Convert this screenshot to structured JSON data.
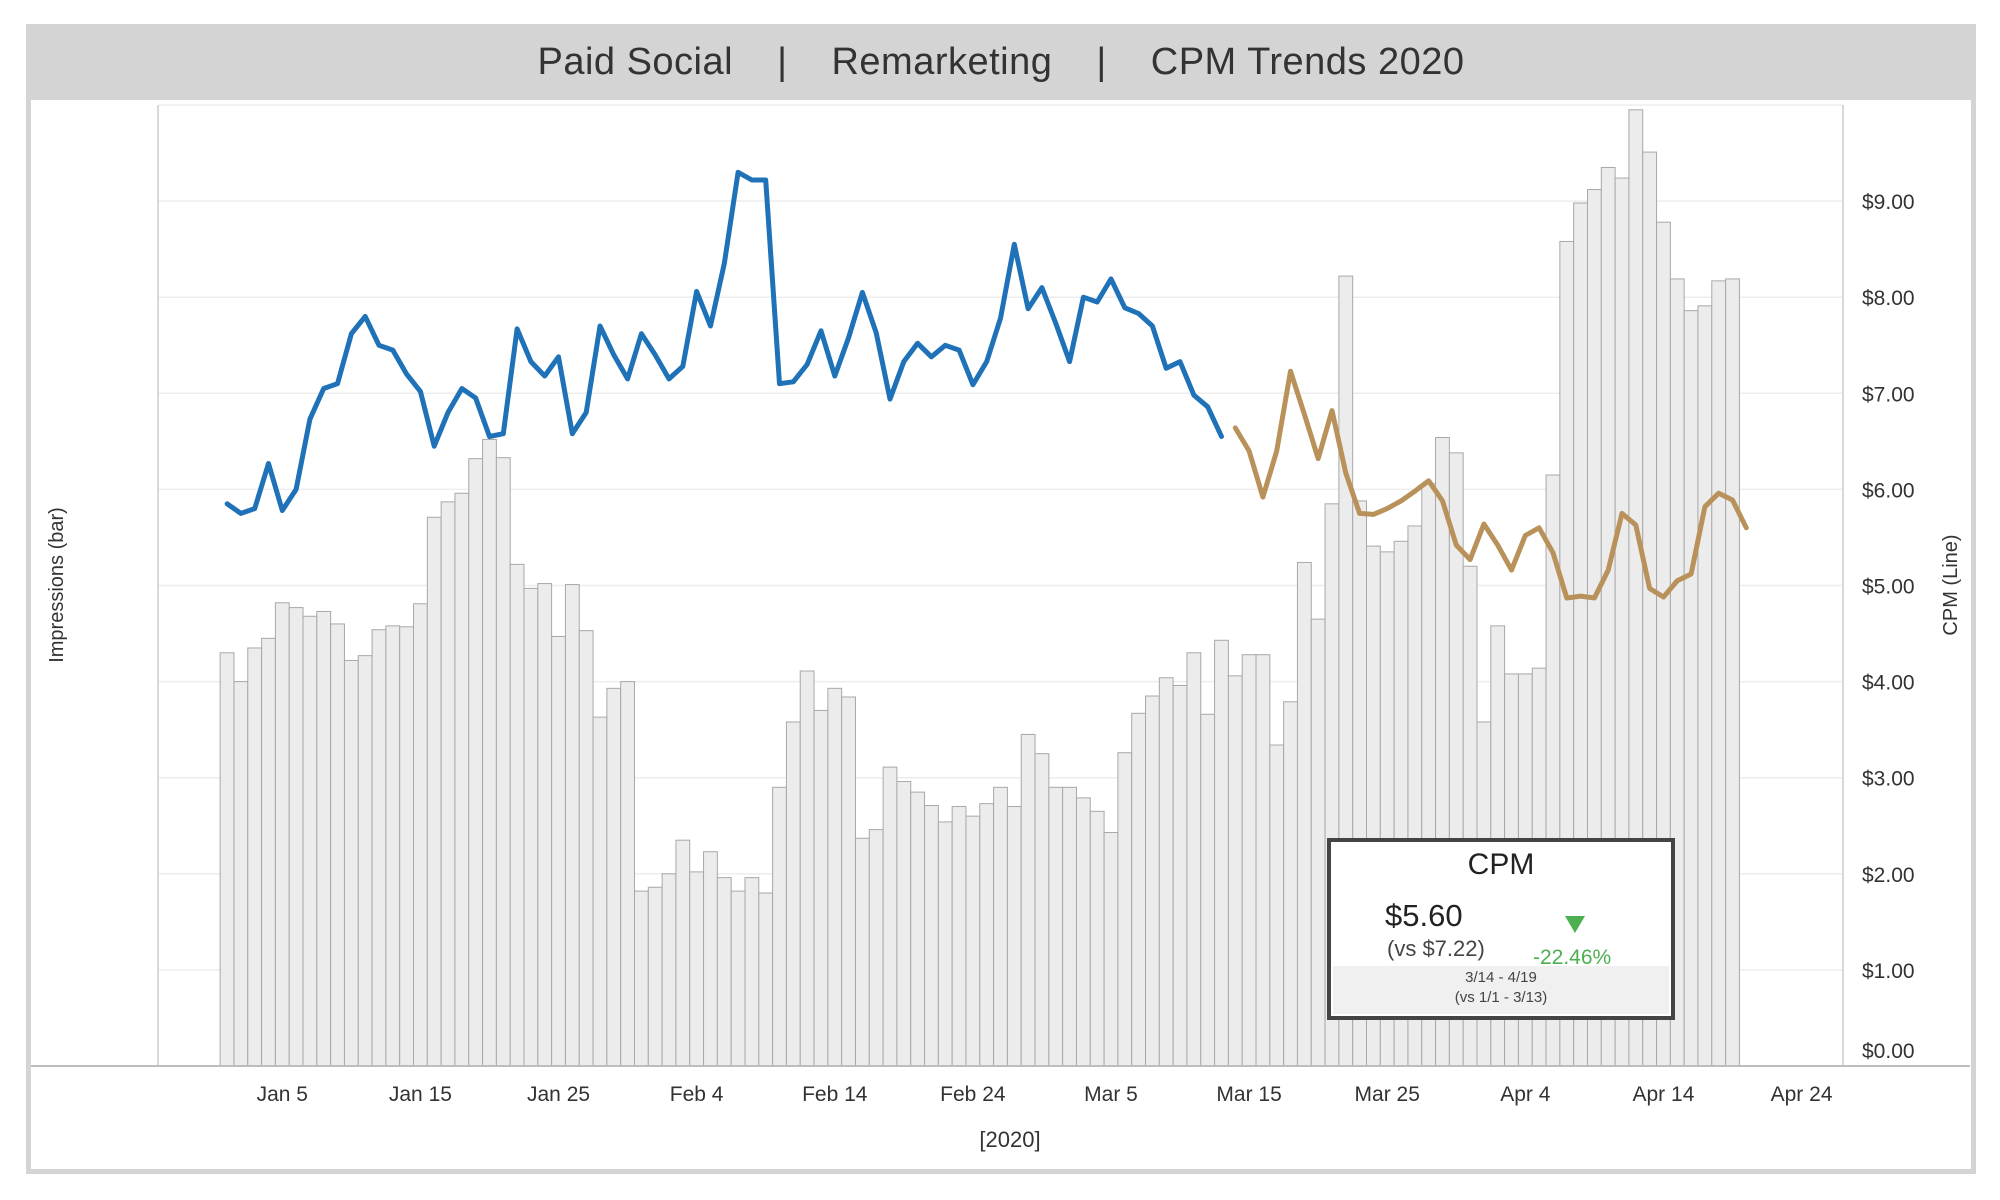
{
  "header": {
    "segments": [
      "Paid Social",
      "Remarketing",
      "CPM Trends 2020"
    ],
    "separator": "|"
  },
  "chart_data": {
    "type": "bar",
    "combo": "bar+line",
    "title": "Paid Social | Remarketing | CPM Trends 2020",
    "xlabel": "[2020]",
    "ylabel_left": "Impressions (bar)",
    "ylabel_right": "CPM (Line)",
    "x_tick_labels": [
      "Jan 5",
      "Jan 15",
      "Jan 25",
      "Feb 4",
      "Feb 14",
      "Feb 24",
      "Mar 5",
      "Mar 15",
      "Mar 25",
      "Apr 4",
      "Apr 14",
      "Apr 24"
    ],
    "x_range": [
      "2019-12-27",
      "2020-04-27"
    ],
    "right_axis": {
      "ylim": [
        0,
        10
      ],
      "ticks": [
        "$0.00",
        "$1.00",
        "$2.00",
        "$3.00",
        "$4.00",
        "$5.00",
        "$6.00",
        "$7.00",
        "$8.00",
        "$9.00"
      ]
    },
    "left_axis": {
      "ylim": [
        0,
        10
      ],
      "tick_labels_shown": false
    },
    "grid": true,
    "bars": {
      "name": "Impressions",
      "start_date": "2020-01-01",
      "color": "#ececec",
      "values": [
        4.3,
        4.0,
        4.35,
        4.45,
        4.82,
        4.77,
        4.68,
        4.73,
        4.6,
        4.22,
        4.27,
        4.54,
        4.58,
        4.57,
        4.81,
        5.71,
        5.87,
        5.96,
        6.32,
        6.52,
        6.33,
        5.22,
        4.97,
        5.02,
        4.47,
        5.01,
        4.53,
        3.63,
        3.93,
        4.0,
        1.82,
        1.86,
        2.0,
        2.35,
        2.02,
        2.23,
        1.96,
        1.82,
        1.96,
        1.8,
        2.9,
        3.58,
        4.11,
        3.7,
        3.93,
        3.84,
        2.37,
        2.46,
        3.11,
        2.96,
        2.85,
        2.71,
        2.54,
        2.7,
        2.6,
        2.73,
        2.9,
        2.7,
        3.45,
        3.25,
        2.9,
        2.9,
        2.79,
        2.65,
        2.43,
        3.26,
        3.67,
        3.85,
        4.04,
        3.96,
        4.3,
        3.66,
        4.43,
        4.06,
        4.28,
        4.28,
        3.34,
        3.79,
        5.24,
        4.65,
        5.85,
        8.22,
        5.88,
        5.41,
        5.35,
        5.46,
        5.62,
        6.06,
        6.54,
        6.38,
        5.2,
        3.58,
        4.58,
        4.08,
        4.08,
        4.14,
        6.15,
        8.58,
        8.98,
        9.12,
        9.35,
        9.24,
        9.95,
        9.51,
        8.78,
        8.19,
        7.86,
        7.91,
        8.17,
        8.19
      ]
    },
    "series": [
      {
        "name": "CPM",
        "period": "3/14 - 4/19",
        "color_pre": "#1f72b8",
        "color_post": "#b8925a",
        "split_date": "2020-03-14",
        "start_date": "2020-01-01",
        "values": [
          5.85,
          5.75,
          5.8,
          6.27,
          5.78,
          6.0,
          6.73,
          7.05,
          7.1,
          7.62,
          7.8,
          7.5,
          7.45,
          7.2,
          7.02,
          6.45,
          6.8,
          7.05,
          6.95,
          6.55,
          6.58,
          7.67,
          7.33,
          7.18,
          7.38,
          6.58,
          6.8,
          7.7,
          7.4,
          7.15,
          7.62,
          7.4,
          7.15,
          7.28,
          8.06,
          7.7,
          8.35,
          9.3,
          9.22,
          9.22,
          7.1,
          7.12,
          7.3,
          7.65,
          7.18,
          7.58,
          8.05,
          7.63,
          6.94,
          7.33,
          7.52,
          7.38,
          7.5,
          7.45,
          7.09,
          7.33,
          7.78,
          8.55,
          7.88,
          8.1,
          7.73,
          7.33,
          8.0,
          7.95,
          8.19,
          7.89,
          7.83,
          7.7,
          7.26,
          7.33,
          6.98,
          6.86,
          6.55,
          6.64,
          6.4,
          5.92,
          6.4,
          7.23,
          6.78,
          6.32,
          6.82,
          6.17,
          5.75,
          5.74,
          5.8,
          5.88,
          5.98,
          6.09,
          5.88,
          5.42,
          5.27,
          5.64,
          5.42,
          5.16,
          5.52,
          5.6,
          5.34,
          4.87,
          4.89,
          4.87,
          5.16,
          5.75,
          5.63,
          4.97,
          4.88,
          5.05,
          5.12,
          5.82,
          5.96,
          5.89,
          5.6
        ]
      }
    ]
  },
  "card": {
    "title": "CPM",
    "value": "$5.60",
    "compare": "(vs $7.22)",
    "change": "-22.46%",
    "period": "3/14 - 4/19",
    "compare_period": "(vs 1/1 - 3/13)",
    "change_color": "#4caf50"
  }
}
